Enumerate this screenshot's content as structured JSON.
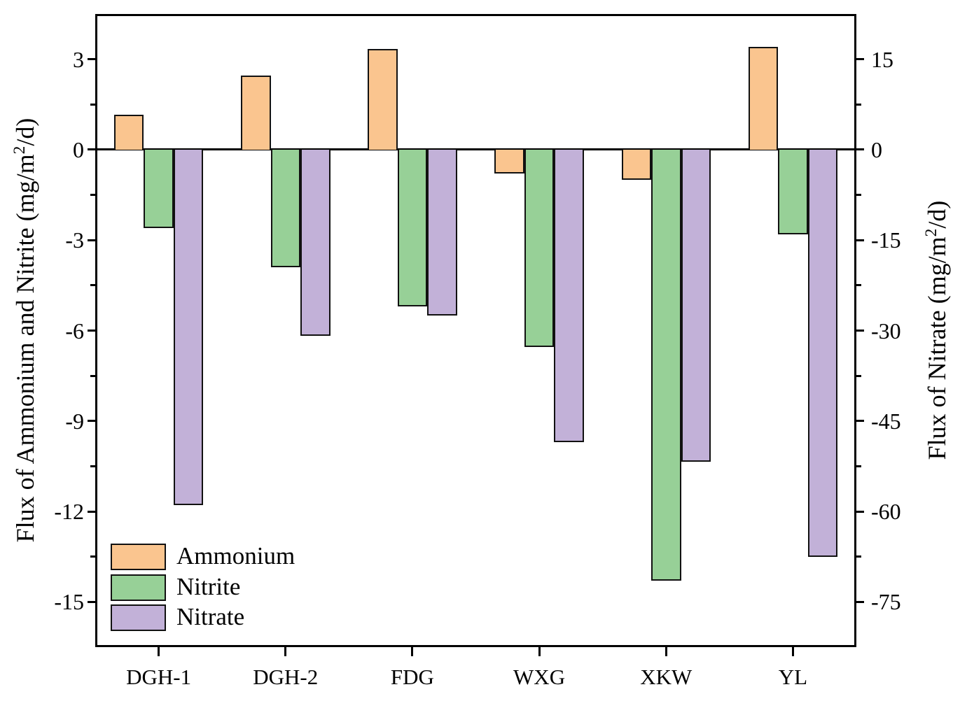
{
  "figure": {
    "left_axis": {
      "title_pre": "Flux of Ammonium and Nitrite (mg/m",
      "title_sup": "2",
      "title_post": "/d)",
      "major_ticks": [
        3,
        0,
        -3,
        -6,
        -9,
        -12,
        -15
      ],
      "minor_ticks": [
        1.5,
        -1.5,
        -4.5,
        -7.5,
        -10.5,
        -13.5
      ]
    },
    "right_axis": {
      "title_pre": "Flux of Nitrate (mg/m",
      "title_sup": "2",
      "title_post": "/d)",
      "major_ticks": [
        15,
        0,
        -15,
        -30,
        -45,
        -60,
        -75
      ],
      "minor_ticks": [
        7.5,
        -7.5,
        -22.5,
        -37.5,
        -52.5,
        -67.5
      ]
    }
  },
  "chart_data": {
    "type": "bar",
    "categories": [
      "DGH-1",
      "DGH-2",
      "FDG",
      "WXG",
      "XKW",
      "YL"
    ],
    "series": [
      {
        "name": "Ammonium",
        "axis": "left",
        "color": "#FAC58F",
        "values": [
          1.15,
          2.45,
          3.35,
          -0.8,
          -1.0,
          3.4
        ]
      },
      {
        "name": "Nitrite",
        "axis": "left",
        "color": "#97D097",
        "values": [
          -2.6,
          -3.9,
          -5.2,
          -6.55,
          -14.3,
          -2.8
        ]
      },
      {
        "name": "Nitrate",
        "axis": "right",
        "color": "#C2B1D8",
        "values": [
          -59,
          -30.9,
          -27.5,
          -48.5,
          -51.7,
          -67.5
        ]
      }
    ],
    "title": "",
    "xlabel": "",
    "left_ylabel": "Flux of Ammonium and Nitrite (mg/m2/d)",
    "right_ylabel": "Flux of Nitrate (mg/m2/d)",
    "left_ylim": [
      -16.5,
      4.5
    ],
    "right_ylim": [
      -82.5,
      22.5
    ],
    "grid": false,
    "legend_position": "lower-left",
    "bar_edge_color": "#111111",
    "axis_color": "#000000"
  }
}
